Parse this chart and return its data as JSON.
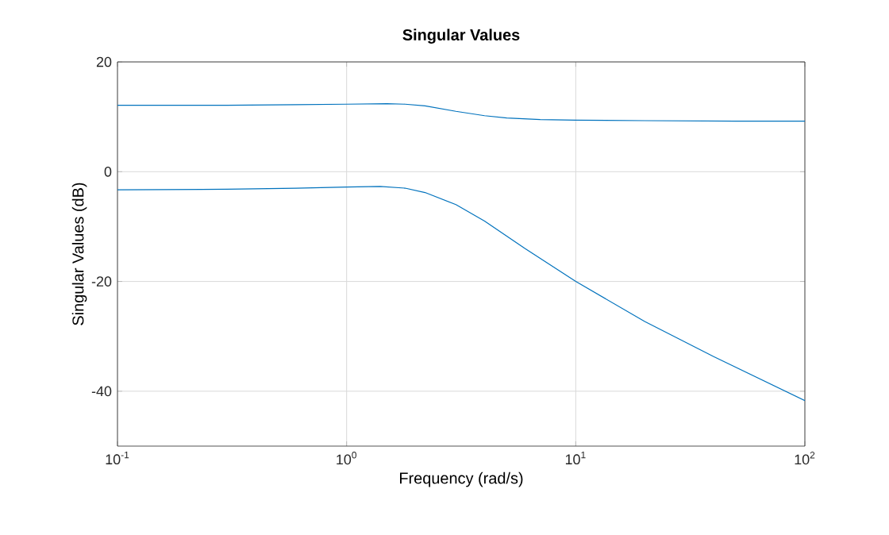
{
  "chart_data": {
    "type": "line",
    "title": "Singular Values",
    "xlabel": "Frequency (rad/s)",
    "ylabel": "Singular Values (dB)",
    "log": "x",
    "grid": true,
    "xlim": [
      0.1,
      100
    ],
    "ylim": [
      -50,
      20
    ],
    "xticks": [
      {
        "value": 0.1,
        "label": "10$^{-1}$"
      },
      {
        "value": 1,
        "label": "10$^{0}$"
      },
      {
        "value": 10,
        "label": "10$^{1}$"
      },
      {
        "value": 100,
        "label": "10$^{2}$"
      }
    ],
    "yticks": [
      -40,
      -20,
      0,
      20
    ],
    "series": [
      {
        "color": "#0072bd",
        "x": [
          0.1,
          0.3,
          0.6,
          1,
          1.5,
          1.8,
          2.2,
          3,
          4,
          5,
          7,
          10,
          20,
          50,
          100
        ],
        "values": [
          12.1,
          12.1,
          12.2,
          12.3,
          12.4,
          12.3,
          12.0,
          11.0,
          10.2,
          9.8,
          9.5,
          9.4,
          9.3,
          9.2,
          9.2
        ]
      },
      {
        "color": "#0072bd",
        "x": [
          0.1,
          0.3,
          0.6,
          1,
          1.4,
          1.8,
          2.2,
          3,
          4,
          6,
          10,
          20,
          40,
          100
        ],
        "values": [
          -3.3,
          -3.2,
          -3.0,
          -2.8,
          -2.7,
          -3.0,
          -3.8,
          -6,
          -9,
          -14,
          -20,
          -27.3,
          -33.7,
          -41.7
        ]
      }
    ]
  }
}
